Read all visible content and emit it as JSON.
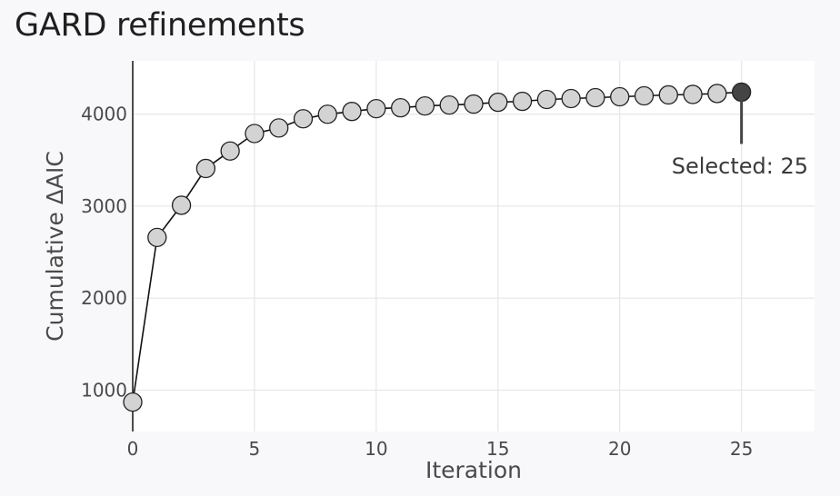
{
  "header": {
    "title": "GARD refinements"
  },
  "chart_data": {
    "type": "line",
    "title": "GARD refinements",
    "xlabel": "Iteration",
    "ylabel": "Cumulative ΔAIC",
    "xlim": [
      0,
      28
    ],
    "ylim": [
      550,
      4580
    ],
    "x_ticks": [
      0,
      5,
      10,
      15,
      20,
      25
    ],
    "y_ticks": [
      1000,
      2000,
      3000,
      4000
    ],
    "grid": true,
    "series": [
      {
        "x": [
          0,
          1,
          2,
          3,
          4,
          5,
          6,
          7,
          8,
          9,
          10,
          11,
          12,
          13,
          14,
          15,
          16,
          17,
          18,
          19,
          20,
          21,
          22,
          23,
          24,
          25
        ],
        "values": [
          870,
          2660,
          3010,
          3410,
          3600,
          3790,
          3850,
          3950,
          4000,
          4030,
          4060,
          4070,
          4090,
          4100,
          4110,
          4130,
          4140,
          4160,
          4170,
          4180,
          4190,
          4200,
          4210,
          4215,
          4225,
          4240
        ]
      }
    ],
    "colors": {
      "marker_fill": "#d3d3d3",
      "marker_stroke": "#222222",
      "selected_fill": "#444444",
      "line": "#111111",
      "grid": "#e6e6e6",
      "plot_bg": "#ffffff"
    },
    "annotations": [
      {
        "text": "Selected: 25",
        "x": 25,
        "y": 4240
      }
    ]
  }
}
